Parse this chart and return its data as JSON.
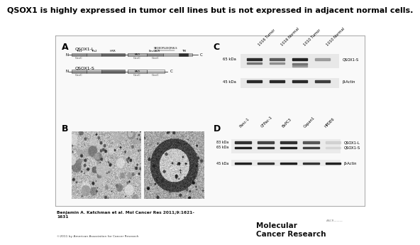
{
  "title": "QSOX1 is highly expressed in tumor cell lines but is not expressed in adjacent normal cells.",
  "title_fontsize": 8.0,
  "bg_color": "#ffffff",
  "citation": "Benjamin A. Katchman et al. Mol Cancer Res 2011;9:1621-\n1631",
  "copyright": "©2011 by American Association for Cancer Research",
  "journal_name": "Molecular\nCancer Research",
  "panel_C_col_labels": [
    "1016 Tumor",
    "1016 Normal",
    "1010 Tumor",
    "1010 Normal"
  ],
  "panel_D_col_labels": [
    "Panc-1",
    "CFPac-1",
    "BxPC3",
    "Capan1",
    "HPDE6"
  ],
  "panel_C_band_labels": [
    "QSOX1-S",
    "β-Actin"
  ],
  "panel_D_band_labels": [
    "QSOX1-L",
    "QSOX1-S",
    "β-Actin"
  ]
}
